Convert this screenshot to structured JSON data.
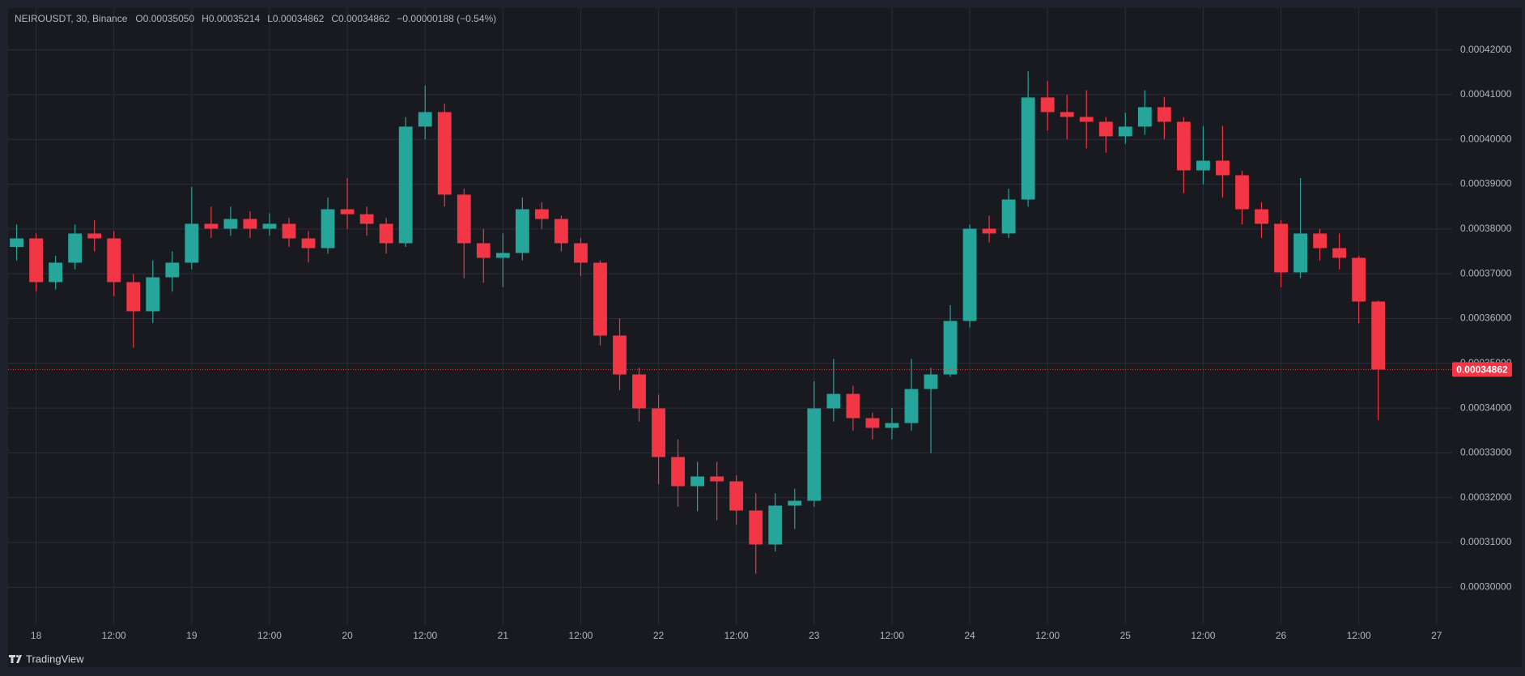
{
  "header": {
    "symbol": "NEIROUSDT, 30, Binance",
    "ohlc": [
      {
        "label": "O",
        "value": "0.00035050"
      },
      {
        "label": "H",
        "value": "0.00035214"
      },
      {
        "label": "L",
        "value": "0.00034862"
      },
      {
        "label": "C",
        "value": "0.00034862"
      }
    ],
    "change": "−0.00000188 (−0.54%)"
  },
  "footer": {
    "brand": "TradingView"
  },
  "chart_data": {
    "type": "candlestick",
    "up_color": "#26a69a",
    "down_color": "#f23645",
    "grid": true,
    "xlim": [
      17.82,
      27.1
    ],
    "ylim": [
      0.00029175,
      0.00042933
    ],
    "xticks": [
      18,
      {
        "value": 18.5,
        "label": "12:00"
      },
      19,
      {
        "value": 19.5,
        "label": "12:00"
      },
      20,
      {
        "value": 20.5,
        "label": "12:00"
      },
      21,
      {
        "value": 21.5,
        "label": "12:00"
      },
      22,
      {
        "value": 22.5,
        "label": "12:00"
      },
      23,
      {
        "value": 23.5,
        "label": "12:00"
      },
      24,
      {
        "value": 24.5,
        "label": "12:00"
      },
      25,
      {
        "value": 25.5,
        "label": "12:00"
      },
      26,
      {
        "value": 26.5,
        "label": "12:00"
      },
      27
    ],
    "yticks": [
      {
        "value": 0.0003,
        "label": "0.00030000"
      },
      {
        "value": 0.00031,
        "label": "0.00031000"
      },
      {
        "value": 0.00032,
        "label": "0.00032000"
      },
      {
        "value": 0.00033,
        "label": "0.00033000"
      },
      {
        "value": 0.00034,
        "label": "0.00034000"
      },
      {
        "value": 0.00035,
        "label": "0.00035000"
      },
      {
        "value": 0.00036,
        "label": "0.00036000"
      },
      {
        "value": 0.00037,
        "label": "0.00037000"
      },
      {
        "value": 0.00038,
        "label": "0.00038000"
      },
      {
        "value": 0.00039,
        "label": "0.00039000"
      },
      {
        "value": 0.0004,
        "label": "0.00040000"
      },
      {
        "value": 0.00041,
        "label": "0.00041000"
      },
      {
        "value": 0.00042,
        "label": "0.00042000"
      }
    ],
    "x": [
      17.875,
      18,
      18.125,
      18.25,
      18.375,
      18.5,
      18.625,
      18.75,
      18.875,
      19,
      19.125,
      19.25,
      19.375,
      19.5,
      19.625,
      19.75,
      19.875,
      20,
      20.125,
      20.25,
      20.375,
      20.5,
      20.625,
      20.75,
      20.875,
      21,
      21.125,
      21.25,
      21.375,
      21.5,
      21.625,
      21.75,
      21.875,
      22,
      22.125,
      22.25,
      22.375,
      22.5,
      22.625,
      22.75,
      22.875,
      23,
      23.125,
      23.25,
      23.375,
      23.5,
      23.625,
      23.75,
      23.875,
      24,
      24.125,
      24.25,
      24.375,
      24.5,
      24.625,
      24.75,
      24.875,
      25,
      25.125,
      25.25,
      25.375,
      25.5,
      25.625,
      25.75,
      25.875,
      26,
      26.125,
      26.25,
      26.375,
      26.5,
      26.625
    ],
    "open": [
      0.000376,
      0.0003779,
      0.00036814,
      0.00037248,
      0.00037899,
      0.0003779,
      0.00036814,
      0.00036163,
      0.00036922,
      0.00037248,
      0.00038116,
      0.00038007,
      0.00038224,
      0.00038007,
      0.00038116,
      0.0003779,
      0.00037573,
      0.00038441,
      0.0003833,
      0.00038116,
      0.00037682,
      0.00040286,
      0.00040611,
      0.00038767,
      0.00037682,
      0.00037356,
      0.00037465,
      0.00038441,
      0.00038224,
      0.00037682,
      0.00037248,
      0.0003562,
      0.00034752,
      0.00033993,
      0.00032908,
      0.00032257,
      0.00032474,
      0.00032365,
      0.00031714,
      0.00030955,
      0.00031823,
      0.00031931,
      0.00033993,
      0.00034318,
      0.00033776,
      0.00033559,
      0.00033667,
      0.00034427,
      0.00034752,
      0.00035946,
      0.00038007,
      0.000379,
      0.00038658,
      0.00040937,
      0.00040611,
      0.00040503,
      0.00040394,
      0.00040069,
      0.00040286,
      0.0004072,
      0.00040394,
      0.00039309,
      0.00039526,
      0.000392,
      0.00038441,
      0.00038116,
      0.00037031,
      0.00037899,
      0.00037573,
      0.00037356,
      0.0003638
    ],
    "high": [
      0.000381,
      0.000379,
      0.000374,
      0.000381,
      0.000382,
      0.0003795,
      0.00037,
      0.000373,
      0.000375,
      0.0003894,
      0.000385,
      0.000385,
      0.000384,
      0.0003835,
      0.0003825,
      0.0003795,
      0.000387,
      0.00039136,
      0.000385,
      0.0003825,
      0.000405,
      0.000412,
      0.000408,
      0.000389,
      0.00038,
      0.000379,
      0.000387,
      0.000386,
      0.000383,
      0.000378,
      0.000373,
      0.00036,
      0.000349,
      0.000343,
      0.000333,
      0.000328,
      0.000328,
      0.000325,
      0.000321,
      0.000321,
      0.000322,
      0.000346,
      0.000351,
      0.000345,
      0.000339,
      0.00034,
      0.000351,
      0.000349,
      0.000363,
      0.000381,
      0.000383,
      0.000389,
      0.00041523,
      0.000413,
      0.00041,
      0.000411,
      0.000405,
      0.000406,
      0.000411,
      0.0004095,
      0.000405,
      0.000403,
      0.000403,
      0.000393,
      0.000386,
      0.000382,
      0.00039136,
      0.00038,
      0.000379,
      0.000374,
      0.000364
    ],
    "low": [
      0.000373,
      0.000366,
      0.0003665,
      0.000371,
      0.000375,
      0.000365,
      0.0003535,
      0.000359,
      0.000366,
      0.000371,
      0.000378,
      0.0003785,
      0.000378,
      0.0003785,
      0.000376,
      0.0003725,
      0.0003745,
      0.00038,
      0.0003785,
      0.0003745,
      0.000376,
      0.0004,
      0.000385,
      0.000369,
      0.000368,
      0.000367,
      0.000373,
      0.00038,
      0.000375,
      0.0003695,
      0.000354,
      0.000344,
      0.000337,
      0.000323,
      0.000318,
      0.000317,
      0.000315,
      0.000314,
      0.00030304,
      0.000308,
      0.000313,
      0.000318,
      0.000337,
      0.000335,
      0.000333,
      0.000333,
      0.000335,
      0.00032994,
      0.000347,
      0.000358,
      0.000377,
      0.000378,
      0.000385,
      0.000402,
      0.0004,
      0.000398,
      0.000397,
      0.000399,
      0.000401,
      0.0004,
      0.000388,
      0.00039,
      0.000387,
      0.000381,
      0.000378,
      0.000367,
      0.000369,
      0.000373,
      0.000371,
      0.000359,
      0.00033732
    ],
    "close": [
      0.0003779,
      0.00036814,
      0.00037248,
      0.00037899,
      0.0003779,
      0.00036814,
      0.00036163,
      0.00036922,
      0.00037248,
      0.00038116,
      0.00038007,
      0.00038224,
      0.00038007,
      0.00038116,
      0.0003779,
      0.00037573,
      0.00038441,
      0.0003833,
      0.00038116,
      0.00037682,
      0.00040286,
      0.00040611,
      0.00038767,
      0.00037682,
      0.00037356,
      0.00037465,
      0.00038441,
      0.00038224,
      0.00037682,
      0.00037248,
      0.0003562,
      0.00034752,
      0.00033993,
      0.00032908,
      0.00032257,
      0.00032474,
      0.00032365,
      0.00031714,
      0.00030955,
      0.00031823,
      0.00031931,
      0.00033993,
      0.00034318,
      0.00033776,
      0.00033559,
      0.00033667,
      0.00034427,
      0.00034752,
      0.00035946,
      0.00038007,
      0.000379,
      0.00038658,
      0.00040937,
      0.00040611,
      0.00040503,
      0.00040394,
      0.00040069,
      0.00040286,
      0.0004072,
      0.00040394,
      0.00039309,
      0.00039526,
      0.000392,
      0.00038441,
      0.00038116,
      0.00037031,
      0.00037899,
      0.00037573,
      0.00037356,
      0.0003638,
      0.00034862
    ]
  }
}
